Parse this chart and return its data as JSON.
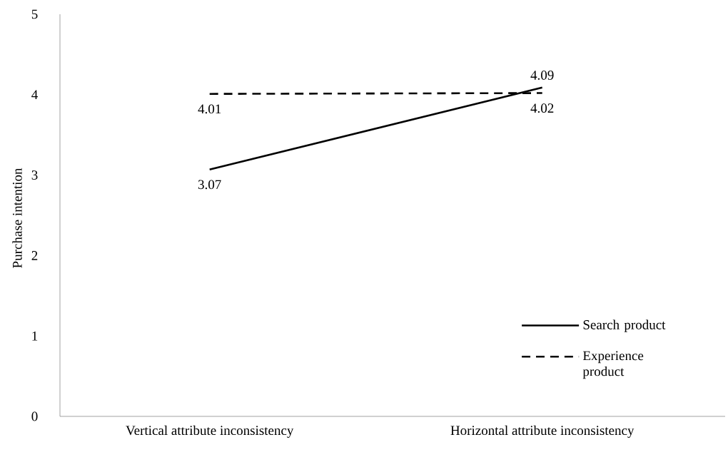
{
  "chart_data": {
    "type": "line",
    "ylabel": "Purchase intention",
    "categories": [
      "Vertical attribute inconsistency",
      "Horizontal attribute inconsistency"
    ],
    "series": [
      {
        "name": "Search product",
        "color": "#000000",
        "values": [
          3.07,
          4.09
        ],
        "line_style": "solid"
      },
      {
        "name": "Experience product",
        "color": "#000000",
        "values": [
          4.01,
          4.02
        ],
        "line_style": "dashed"
      }
    ],
    "ylim": [
      0,
      5
    ],
    "yticks": [
      0,
      1,
      2,
      3,
      4,
      5
    ],
    "data_labels": true,
    "legend": "bottom right",
    "marker": "none",
    "grid": false
  }
}
